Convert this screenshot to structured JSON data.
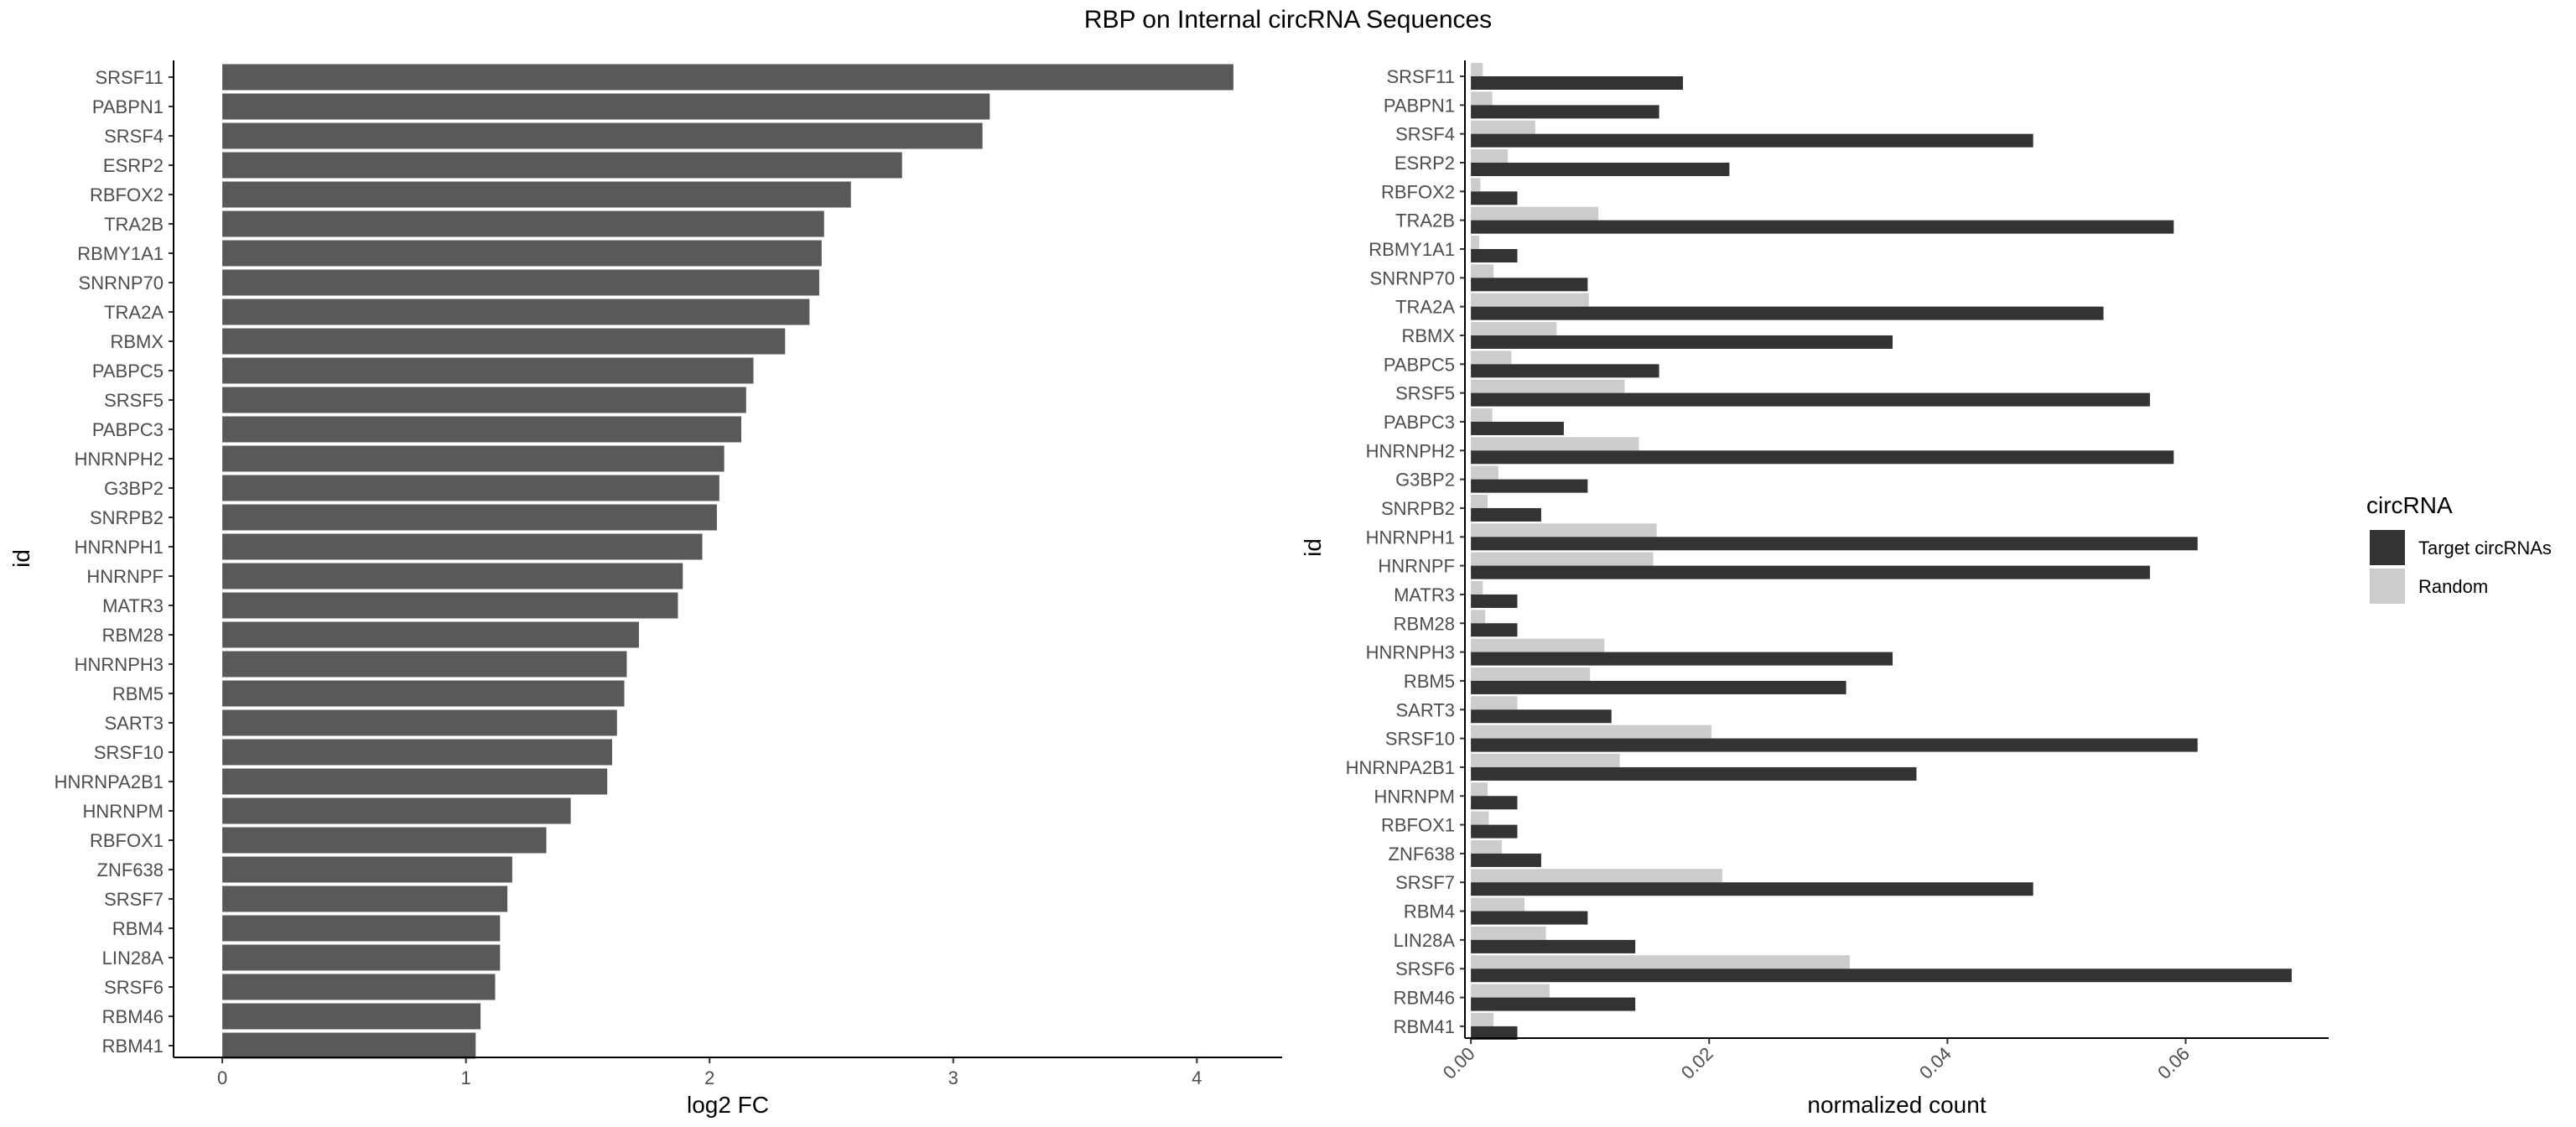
{
  "figure_title": "RBP on Internal circRNA Sequences",
  "chart_data": [
    {
      "type": "bar",
      "orientation": "horizontal",
      "categories": [
        "SRSF11",
        "PABPN1",
        "SRSF4",
        "ESRP2",
        "RBFOX2",
        "TRA2B",
        "RBMY1A1",
        "SNRNP70",
        "TRA2A",
        "RBMX",
        "PABPC5",
        "SRSF5",
        "PABPC3",
        "HNRNPH2",
        "G3BP2",
        "SNRPB2",
        "HNRNPH1",
        "HNRNPF",
        "MATR3",
        "RBM28",
        "HNRNPH3",
        "RBM5",
        "SART3",
        "SRSF10",
        "HNRNPA2B1",
        "HNRNPM",
        "RBFOX1",
        "ZNF638",
        "SRSF7",
        "RBM4",
        "LIN28A",
        "SRSF6",
        "RBM46",
        "RBM41"
      ],
      "values": [
        4.15,
        3.15,
        3.12,
        2.79,
        2.58,
        2.47,
        2.46,
        2.45,
        2.41,
        2.31,
        2.18,
        2.15,
        2.13,
        2.06,
        2.04,
        2.03,
        1.97,
        1.89,
        1.87,
        1.71,
        1.66,
        1.65,
        1.62,
        1.6,
        1.58,
        1.43,
        1.33,
        1.19,
        1.17,
        1.14,
        1.14,
        1.12,
        1.06,
        1.04
      ],
      "xlabel": "log2 FC",
      "ylabel": "id",
      "xlim": [
        -0.2,
        4.35
      ],
      "xticks": [
        0,
        1,
        2,
        3,
        4
      ],
      "bar_color": "#595959",
      "grid": false
    },
    {
      "type": "bar",
      "orientation": "horizontal",
      "grouped": true,
      "categories": [
        "SRSF11",
        "PABPN1",
        "SRSF4",
        "ESRP2",
        "RBFOX2",
        "TRA2B",
        "RBMY1A1",
        "SNRNP70",
        "TRA2A",
        "RBMX",
        "PABPC5",
        "SRSF5",
        "PABPC3",
        "HNRNPH2",
        "G3BP2",
        "SNRPB2",
        "HNRNPH1",
        "HNRNPF",
        "MATR3",
        "RBM28",
        "HNRNPH3",
        "RBM5",
        "SART3",
        "SRSF10",
        "HNRNPA2B1",
        "HNRNPM",
        "RBFOX1",
        "ZNF638",
        "SRSF7",
        "RBM4",
        "LIN28A",
        "SRSF6",
        "RBM46",
        "RBM41"
      ],
      "series": [
        {
          "name": "Target circRNAs",
          "color": "#333333",
          "values": [
            0.0178,
            0.0158,
            0.0472,
            0.0217,
            0.0039,
            0.059,
            0.0039,
            0.0098,
            0.0531,
            0.0354,
            0.0158,
            0.057,
            0.0078,
            0.059,
            0.0098,
            0.0059,
            0.061,
            0.057,
            0.0039,
            0.0039,
            0.0354,
            0.0315,
            0.0118,
            0.061,
            0.0374,
            0.0039,
            0.0039,
            0.0059,
            0.0472,
            0.0098,
            0.0138,
            0.0689,
            0.0138,
            0.0039
          ]
        },
        {
          "name": "Random",
          "color": "#cccccc",
          "values": [
            0.001,
            0.0018,
            0.0054,
            0.0031,
            0.0008,
            0.0107,
            0.0007,
            0.0019,
            0.0099,
            0.0072,
            0.0034,
            0.0129,
            0.0018,
            0.0141,
            0.0023,
            0.0014,
            0.0156,
            0.0153,
            0.001,
            0.0012,
            0.0112,
            0.01,
            0.0039,
            0.0202,
            0.0125,
            0.0014,
            0.0015,
            0.0026,
            0.0211,
            0.0045,
            0.0063,
            0.0318,
            0.0066,
            0.0019
          ]
        }
      ],
      "xlabel": "normalized count",
      "ylabel": "id",
      "xlim": [
        -0.0005,
        0.072
      ],
      "xticks": [
        "0.00",
        "0.02",
        "0.04",
        "0.06"
      ],
      "legend": {
        "title": "circRNA",
        "position": "right"
      },
      "grid": false
    }
  ]
}
